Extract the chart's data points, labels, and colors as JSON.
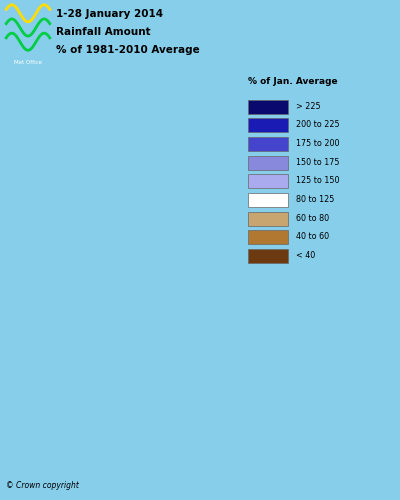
{
  "title_line1": "1-28 January 2014",
  "title_line2": "Rainfall Amount",
  "title_line3": "% of 1981-2010 Average",
  "copyright_text": "© Crown copyright",
  "legend_title": "% of Jan. Average",
  "legend_entries": [
    {
      "> 225": "#0a0a6e"
    },
    {
      "200 to 225": "#1a1ab5"
    },
    {
      "175 to 200": "#4444cc"
    },
    {
      "150 to 175": "#8888dd"
    },
    {
      "125 to 150": "#aaaaee"
    },
    {
      "80 to 125": "#ffffff"
    },
    {
      "60 to 80": "#c8a46e"
    },
    {
      "40 to 60": "#b07830"
    },
    {
      "< 40": "#6b3a10"
    }
  ],
  "legend_colors": [
    "#0a0a6e",
    "#1a1ab5",
    "#4444cc",
    "#8888dd",
    "#aaaaee",
    "#ffffff",
    "#c8a46e",
    "#b07830",
    "#6b3a10"
  ],
  "legend_labels": [
    "> 225",
    "200 to 225",
    "175 to 200",
    "150 to 175",
    "125 to 150",
    "80 to 125",
    "60 to 80",
    "40 to 60",
    "< 40"
  ],
  "background_color": "#87ceeb",
  "map_background": "#87ceeb",
  "ireland_color": "#c8d4b0",
  "metoffice_bg": "#1a1a1a",
  "metoffice_logo_colors": [
    "#ffdd00",
    "#00aa44"
  ],
  "fig_width": 4.0,
  "fig_height": 5.0,
  "dpi": 100
}
